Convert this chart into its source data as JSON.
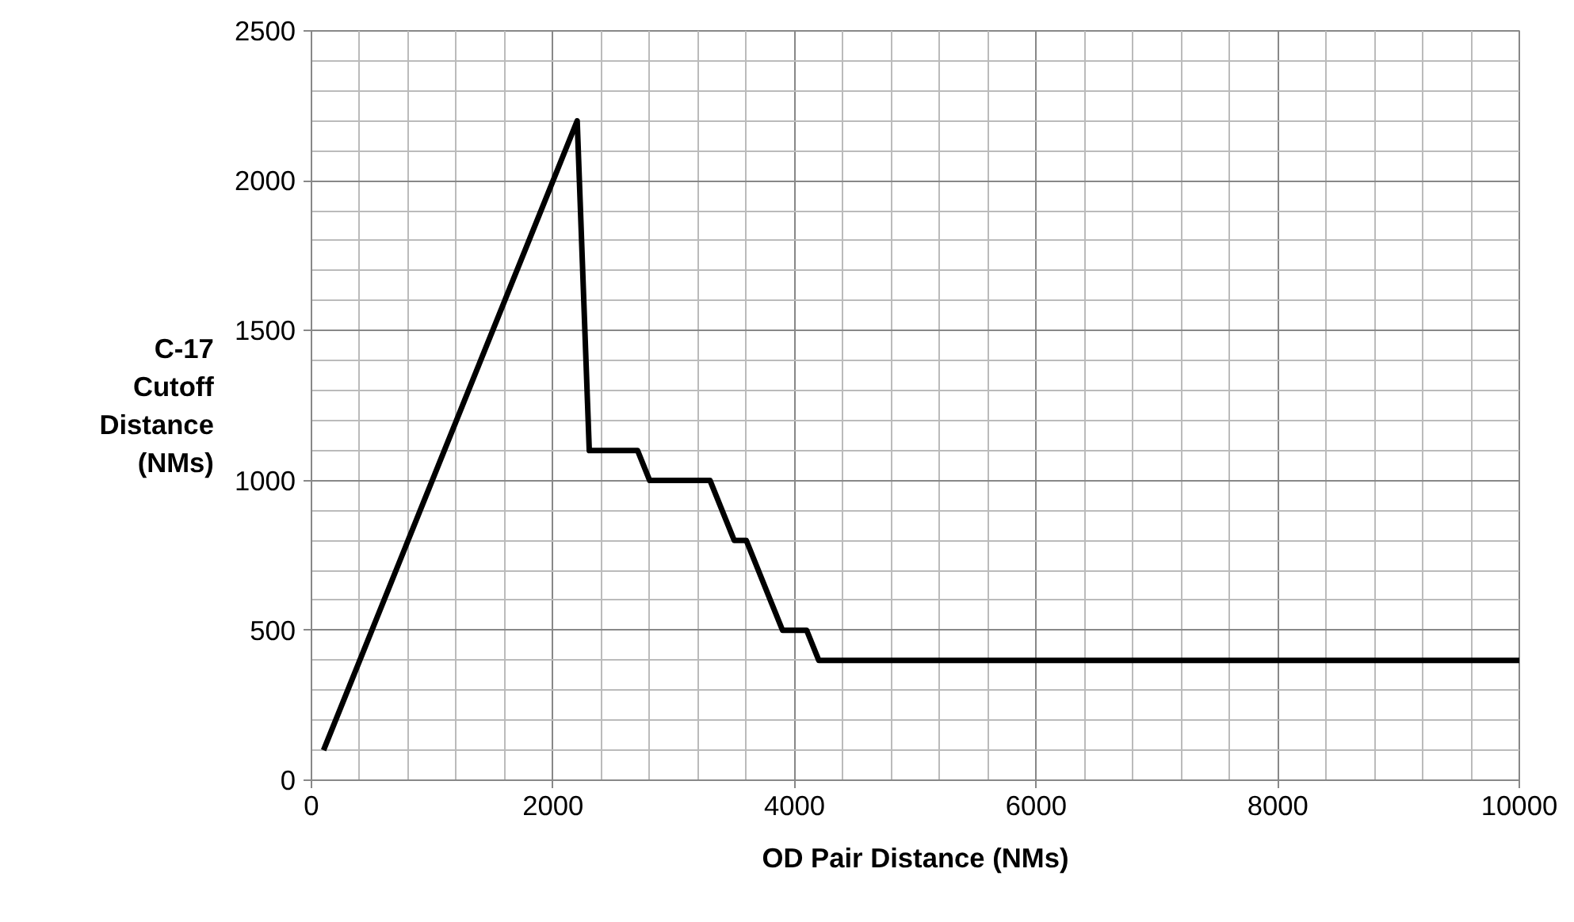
{
  "chart_data": {
    "type": "line",
    "xlabel": "OD Pair Distance (NMs)",
    "ylabel": "C-17\nCutoff\nDistance\n(NMs)",
    "x": [
      100,
      2200,
      2300,
      2700,
      2800,
      3300,
      3500,
      3600,
      3900,
      4100,
      4200,
      10000
    ],
    "series": [
      {
        "color": "#000000",
        "values": [
          100,
          2200,
          1100,
          1100,
          1000,
          1000,
          800,
          800,
          500,
          500,
          400,
          400
        ]
      }
    ],
    "xlim": [
      0,
      10000
    ],
    "ylim": [
      0,
      2500
    ],
    "xticks": [
      0,
      2000,
      4000,
      6000,
      8000,
      10000
    ],
    "yticks": [
      0,
      500,
      1000,
      1500,
      2000,
      2500
    ],
    "grid": true,
    "marker": "none",
    "line_style": "solid"
  }
}
